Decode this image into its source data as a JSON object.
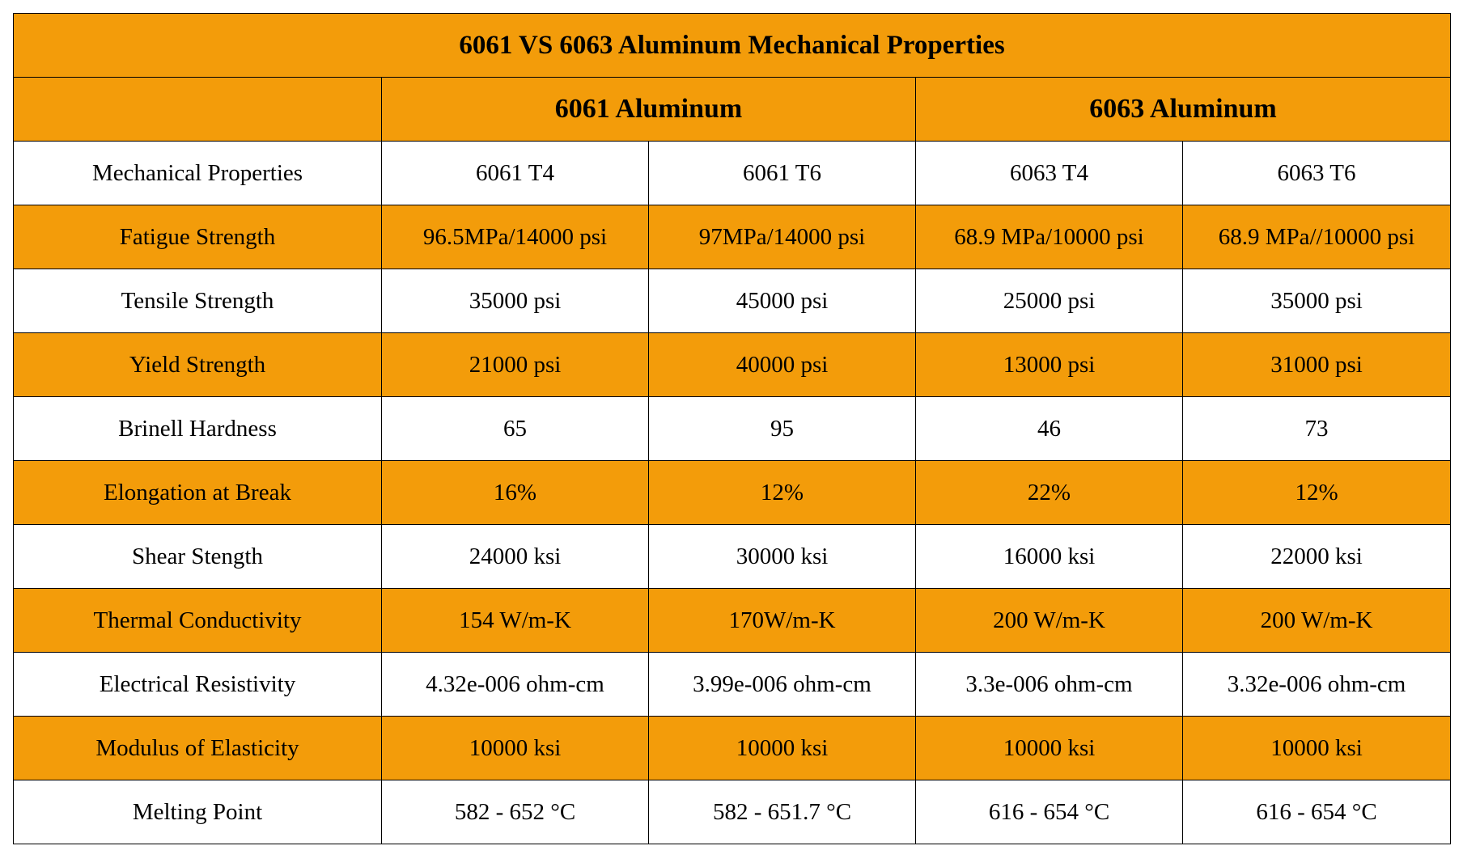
{
  "title": "6061 VS 6063 Aluminum Mechanical Properties",
  "groups": [
    "6061 Aluminum",
    "6063 Aluminum"
  ],
  "header": {
    "property": "Mechanical Properties",
    "tempers": [
      "6061 T4",
      "6061 T6",
      "6063 T4",
      "6063 T6"
    ]
  },
  "colors": {
    "accent": "#f39c0a",
    "alt_row": "#ffffff",
    "border": "#000000"
  },
  "rows": [
    {
      "property": "Fatigue Strength",
      "values": [
        "96.5MPa/14000 psi",
        "97MPa/14000 psi",
        "68.9 MPa/10000 psi",
        "68.9 MPa//10000 psi"
      ]
    },
    {
      "property": "Tensile Strength",
      "values": [
        "35000 psi",
        "45000 psi",
        "25000 psi",
        "35000 psi"
      ]
    },
    {
      "property": "Yield Strength",
      "values": [
        "21000 psi",
        "40000 psi",
        "13000 psi",
        "31000 psi"
      ]
    },
    {
      "property": "Brinell Hardness",
      "values": [
        "65",
        "95",
        "46",
        "73"
      ]
    },
    {
      "property": "Elongation at Break",
      "values": [
        "16%",
        "12%",
        "22%",
        "12%"
      ]
    },
    {
      "property": "Shear Stength",
      "values": [
        "24000 ksi",
        "30000 ksi",
        "16000 ksi",
        "22000 ksi"
      ]
    },
    {
      "property": "Thermal Conductivity",
      "values": [
        "154 W/m-K",
        "170W/m-K",
        "200 W/m-K",
        "200 W/m-K"
      ]
    },
    {
      "property": "Electrical Resistivity",
      "values": [
        "4.32e-006 ohm-cm",
        "3.99e-006 ohm-cm",
        "3.3e-006 ohm-cm",
        "3.32e-006 ohm-cm"
      ]
    },
    {
      "property": "Modulus of  Elasticity",
      "values": [
        "10000 ksi",
        "10000 ksi",
        "10000 ksi",
        "10000 ksi"
      ]
    },
    {
      "property": "Melting Point",
      "values": [
        "582 - 652 °C",
        "582 - 651.7 °C",
        "616 - 654 °C",
        "616 - 654 °C"
      ]
    }
  ]
}
